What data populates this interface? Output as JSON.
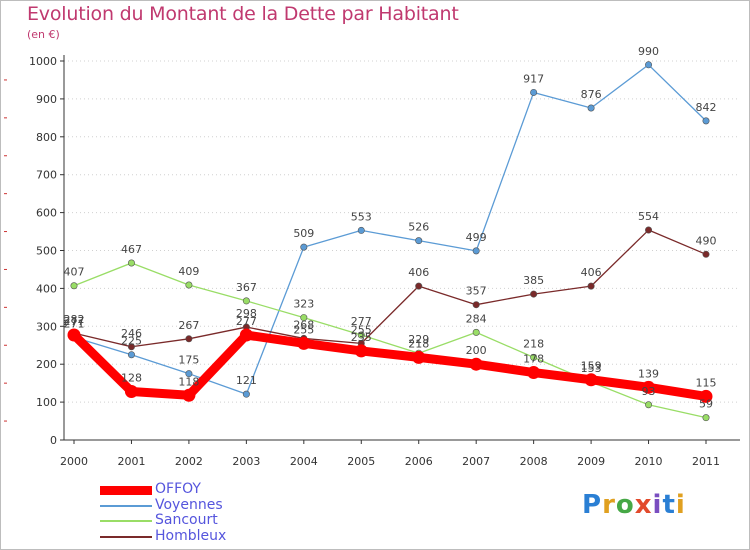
{
  "header": {
    "title": "Evolution du Montant de la Dette par Habitant",
    "subtitle": "(en €)"
  },
  "logo": {
    "text": "Proxiti"
  },
  "colors": {
    "title": "#c0396f",
    "legend_text": "#5555dd",
    "offoy": "#ff0000",
    "voyennes": "#5b9bd5",
    "sancourt": "#99dd66",
    "hombleux": "#7a2a2a",
    "axis": "#333333",
    "grid": "#d0d0d0"
  },
  "chart_data": {
    "type": "line",
    "title": "Evolution du Montant de la Dette par Habitant",
    "subtitle": "(en €)",
    "x": [
      "2000",
      "2001",
      "2002",
      "2003",
      "2004",
      "2005",
      "2006",
      "2007",
      "2008",
      "2009",
      "2010",
      "2011"
    ],
    "ylim": [
      0,
      1000
    ],
    "yticks": [
      0,
      100,
      200,
      300,
      400,
      500,
      600,
      700,
      800,
      900,
      1000
    ],
    "grid": "horizontal dotted",
    "legend": "bottom-left",
    "series": [
      {
        "name": "OFFOY",
        "color": "#ff0000",
        "values": [
          277,
          128,
          118,
          277,
          255,
          235,
          218,
          200,
          178,
          159,
          139,
          115
        ]
      },
      {
        "name": "Voyennes",
        "color": "#5b9bd5",
        "values": [
          271,
          225,
          175,
          121,
          509,
          553,
          526,
          499,
          917,
          876,
          990,
          842
        ]
      },
      {
        "name": "Sancourt",
        "color": "#99dd66",
        "values": [
          407,
          467,
          409,
          367,
          323,
          277,
          229,
          284,
          218,
          153,
          93,
          59
        ]
      },
      {
        "name": "Hombleux",
        "color": "#7a2a2a",
        "values": [
          282,
          246,
          267,
          298,
          268,
          255,
          406,
          357,
          385,
          406,
          554,
          490
        ]
      }
    ]
  }
}
